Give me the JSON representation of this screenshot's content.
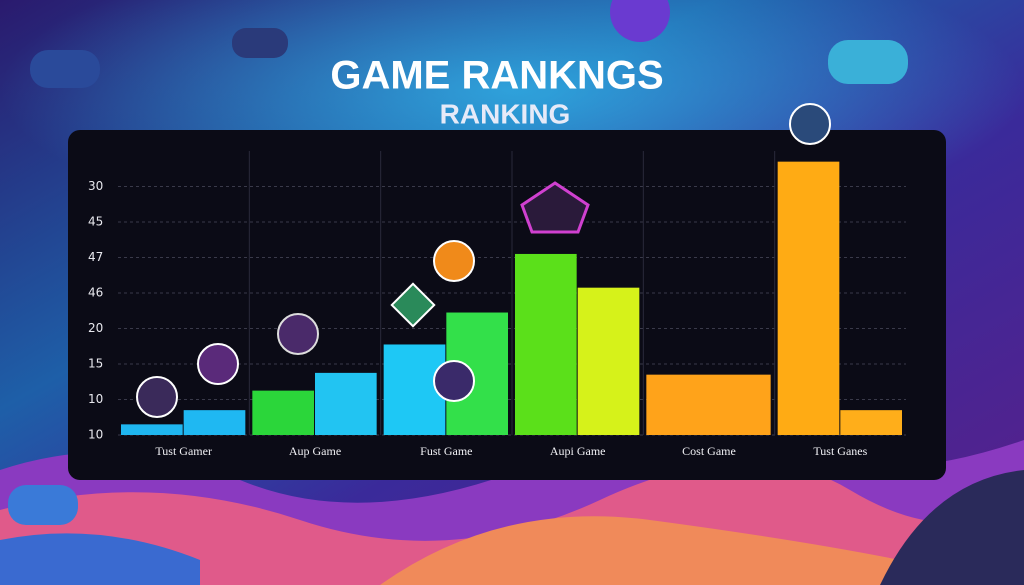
{
  "chart_data": {
    "type": "bar",
    "title": "GAME RANKNGS",
    "subtitle": "RANKING",
    "categories": [
      "Tust Gamer",
      "Aup Game",
      "Fust Game",
      "Aupi Game",
      "Cost Game",
      "Tust Ganes"
    ],
    "series": [
      {
        "values": [
          0.3,
          1.25,
          2.55,
          5.1,
          1.7,
          7.7
        ],
        "colors": [
          "#1fb6f0",
          "#2bd63a",
          "#1ec8f5",
          "#5be01a",
          "#ffa31a",
          "#ffab14"
        ]
      },
      {
        "values": [
          0.7,
          1.75,
          3.45,
          4.15,
          null,
          0.7
        ],
        "colors": [
          "#1fb8f2",
          "#22c4f2",
          "#33e04a",
          "#d6f21a",
          null,
          "#ffae1a"
        ]
      }
    ],
    "ylim": [
      0,
      8
    ],
    "yticks": [
      {
        "value": 0,
        "label": "10"
      },
      {
        "value": 1,
        "label": "10"
      },
      {
        "value": 2,
        "label": "15"
      },
      {
        "value": 3,
        "label": "20"
      },
      {
        "value": 4,
        "label": "46"
      },
      {
        "value": 5,
        "label": "47"
      },
      {
        "value": 6,
        "label": "45"
      },
      {
        "value": 7,
        "label": "30"
      }
    ],
    "grid": true
  }
}
